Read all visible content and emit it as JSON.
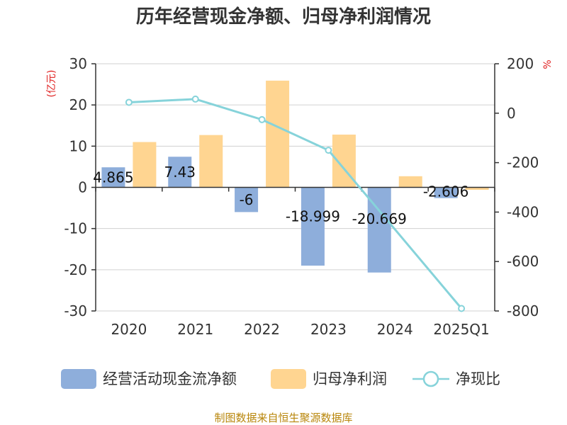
{
  "chart_data": {
    "type": "bar",
    "title": "历年经营现金净额、归母净利润情况",
    "categories": [
      "2020",
      "2021",
      "2022",
      "2023",
      "2024",
      "2025Q1"
    ],
    "series": [
      {
        "name": "经营活动现金流净额",
        "type": "bar",
        "axis": "left",
        "color": "#8eaedb",
        "values": [
          4.865,
          7.43,
          -6,
          -18.999,
          -20.669,
          -2.606
        ],
        "labels": [
          "4.865",
          "7.43",
          "-6",
          "-18.999",
          "-20.669",
          "-2.606"
        ]
      },
      {
        "name": "归母净利润",
        "type": "bar",
        "axis": "left",
        "color": "#ffd591",
        "values": [
          11,
          12.7,
          25.9,
          12.8,
          2.7,
          -0.6
        ]
      },
      {
        "name": "净现比",
        "type": "line",
        "axis": "right",
        "color": "#86d3da",
        "values": [
          44,
          57,
          -26,
          -150,
          null,
          -790
        ]
      }
    ],
    "left_axis": {
      "label": "(亿元)",
      "min": -30,
      "max": 30,
      "step": 10,
      "ticks": [
        "-30",
        "-20",
        "-10",
        "0",
        "10",
        "20",
        "30"
      ]
    },
    "right_axis": {
      "label": "%",
      "min": -800,
      "max": 200,
      "step": 200,
      "ticks": [
        "-800",
        "-600",
        "-400",
        "-200",
        "0",
        "200"
      ]
    },
    "legend_position": "bottom",
    "grid": true
  },
  "source": "制图数据来自恒生聚源数据库"
}
